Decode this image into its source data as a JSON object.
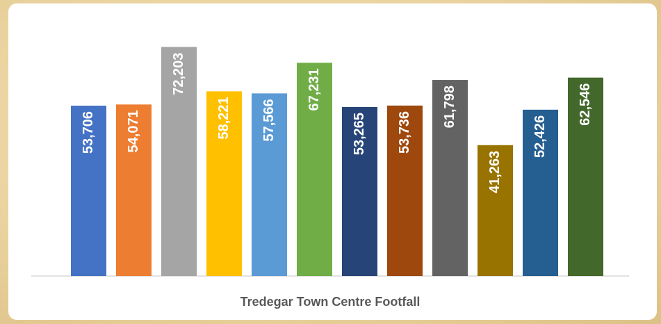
{
  "chart_data": {
    "type": "bar",
    "categories": [
      "Tredegar Town Centre Footfall"
    ],
    "ylim": [
      0,
      80000
    ],
    "series": [
      {
        "color": "#4472c4",
        "values": [
          53706
        ],
        "value_labels": [
          "53,706"
        ]
      },
      {
        "color": "#ed7d31",
        "values": [
          54071
        ],
        "value_labels": [
          "54,071"
        ]
      },
      {
        "color": "#a5a5a5",
        "values": [
          72203
        ],
        "value_labels": [
          "72,203"
        ]
      },
      {
        "color": "#ffc000",
        "values": [
          58221
        ],
        "value_labels": [
          "58,221"
        ]
      },
      {
        "color": "#5b9bd5",
        "values": [
          57566
        ],
        "value_labels": [
          "57,566"
        ]
      },
      {
        "color": "#70ad47",
        "values": [
          67231
        ],
        "value_labels": [
          "67,231"
        ]
      },
      {
        "color": "#264478",
        "values": [
          53265
        ],
        "value_labels": [
          "53,265"
        ]
      },
      {
        "color": "#9e480e",
        "values": [
          53736
        ],
        "value_labels": [
          "53,736"
        ]
      },
      {
        "color": "#636363",
        "values": [
          61798
        ],
        "value_labels": [
          "61,798"
        ]
      },
      {
        "color": "#997300",
        "values": [
          41263
        ],
        "value_labels": [
          "41,263"
        ]
      },
      {
        "color": "#255e91",
        "values": [
          52426
        ],
        "value_labels": [
          "52,426"
        ]
      },
      {
        "color": "#43682b",
        "values": [
          62546
        ],
        "value_labels": [
          "62,546"
        ]
      }
    ]
  }
}
